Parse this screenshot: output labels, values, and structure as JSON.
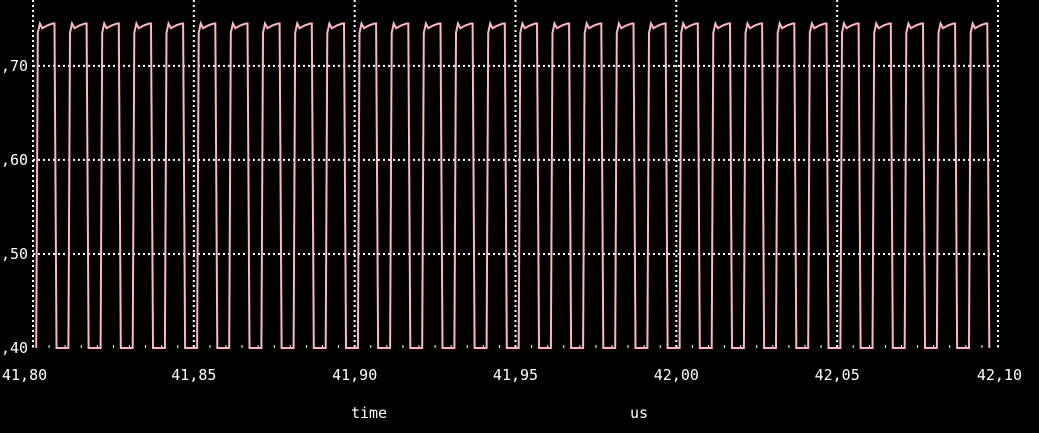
{
  "chart_data": {
    "type": "line",
    "title": "",
    "xlabel": "time",
    "xunit": "us",
    "ylabel": "",
    "xlim": [
      41.8,
      42.1
    ],
    "ylim": [
      0.4,
      0.77
    ],
    "x_ticks": [
      41.8,
      41.85,
      41.9,
      41.95,
      42.0,
      42.05,
      42.1
    ],
    "x_tick_labels": [
      "41,80",
      "41,85",
      "41,90",
      "41,95",
      "42,00",
      "42,05",
      "42,10"
    ],
    "y_ticks": [
      0.4,
      0.5,
      0.6,
      0.7
    ],
    "y_tick_labels": [
      ",40",
      ",50",
      ",60",
      ",70"
    ],
    "grid": true,
    "legend": "none",
    "series": [
      {
        "color": "#ffb6c1",
        "waveform": "periodic pulse train",
        "pulse_period": 0.01,
        "first_pulse_start": 41.801,
        "pulse_width": 0.0063,
        "low_level": 0.4,
        "high_level": 0.745,
        "plateau_level": 0.735
      }
    ]
  },
  "colors": {
    "background": "#000000",
    "grid": "#ffffff",
    "trace": "#ffb6c1",
    "text": "#ffffff"
  }
}
